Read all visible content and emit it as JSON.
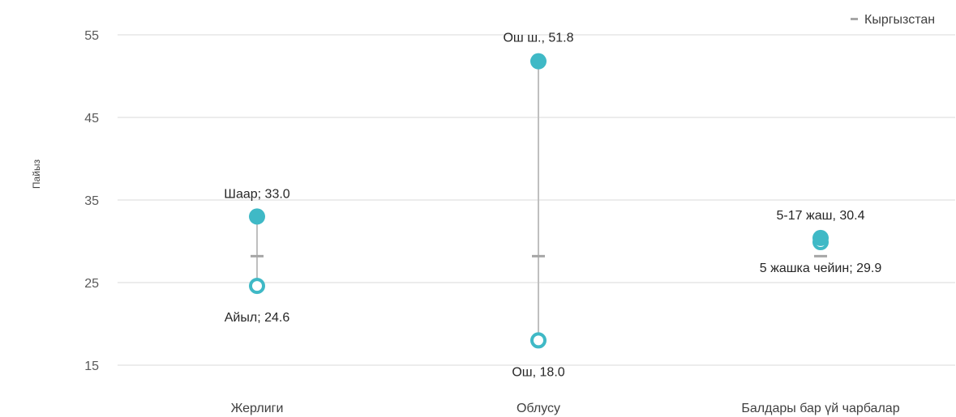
{
  "chart_data": {
    "type": "scatter",
    "ylabel": "Пайыз",
    "ylim": [
      10,
      58
    ],
    "yticks": [
      15,
      25,
      35,
      45,
      55
    ],
    "grid": true,
    "legend": {
      "position": "top-right",
      "entries": [
        "Кыргызстан"
      ]
    },
    "categories": [
      "Жерлиги",
      "Облусу",
      "Балдары бар үй чарбалар"
    ],
    "reference": {
      "name": "Кыргызстан",
      "value": 28.2
    },
    "groups": [
      {
        "category": "Жерлиги",
        "high": {
          "value": 33.0,
          "label": "Шаар; 33.0"
        },
        "low": {
          "value": 24.6,
          "label": "Айыл; 24.6"
        }
      },
      {
        "category": "Облусу",
        "high": {
          "value": 51.8,
          "label": "Ош ш., 51.8"
        },
        "low": {
          "value": 18.0,
          "label": "Ош, 18.0"
        }
      },
      {
        "category": "Балдары бар үй чарбалар",
        "high": {
          "value": 30.4,
          "label": "5-17 жаш, 30.4"
        },
        "low": {
          "value": 29.9,
          "label": "5 жашка чейин; 29.9"
        }
      }
    ],
    "colors": {
      "high_fill": "#3fb9c6",
      "low_stroke": "#3fb9c6",
      "reference": "#a6a6a6",
      "connector": "#bfbfbf",
      "grid": "#d9d9d9"
    }
  }
}
